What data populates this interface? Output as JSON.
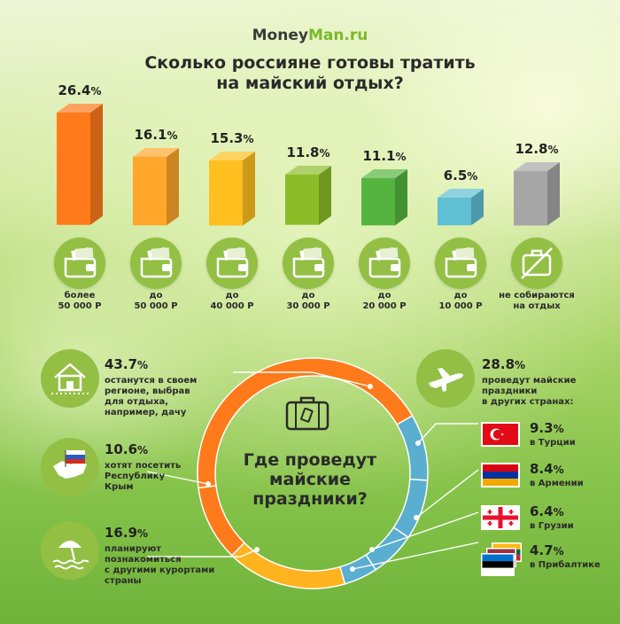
{
  "brand": {
    "logo_part1": "Money",
    "logo_part2": "Man.ru"
  },
  "title_line1": "Сколько россияне готовы тратить",
  "title_line2": "на майский отдых?",
  "colors": {
    "bar": [
      "#ff7a1a",
      "#ffa62b",
      "#ffbf1f",
      "#8cbd28",
      "#55b43f",
      "#5fbfd3",
      "#a6a6a6"
    ],
    "donut_orange": "#ff7a1a",
    "donut_yellow": "#ffb31f",
    "donut_blue": "#5aaed0",
    "icon_circle": "#93bf45"
  },
  "chart_data": [
    {
      "type": "bar",
      "categories": [
        "более 50 000 Р",
        "до 50 000 Р",
        "до 40 000 Р",
        "до 30 000 Р",
        "до 20 000 Р",
        "до 10 000 Р",
        "не собираются на отдых"
      ],
      "category_lines": [
        [
          "более",
          "50 000 Р"
        ],
        [
          "до",
          "50 000 Р"
        ],
        [
          "до",
          "40 000 Р"
        ],
        [
          "до",
          "30 000 Р"
        ],
        [
          "до",
          "20 000 Р"
        ],
        [
          "до",
          "10 000 Р"
        ],
        [
          "не собираются",
          "на отдых"
        ]
      ],
      "values": [
        26.4,
        16.1,
        15.3,
        11.8,
        11.1,
        6.5,
        12.8
      ],
      "value_labels": [
        "26.4",
        "16.1",
        "15.3",
        "11.8",
        "11.1",
        "6.5",
        "12.8"
      ],
      "unit": "%",
      "icons": [
        "wallet-icon",
        "wallet-icon",
        "wallet-icon",
        "wallet-icon",
        "wallet-icon",
        "wallet-icon",
        "no-suitcase-icon"
      ],
      "ylim": [
        0,
        30
      ]
    },
    {
      "type": "pie",
      "title": "Где проведут майские праздники?",
      "title_lines": [
        "Где проведут",
        "майские",
        "праздники?"
      ],
      "slices": [
        {
          "label": "останутся в своем регионе, выбрав для отдыха, например, дачу",
          "value": 43.7,
          "color": "#ff7a1a"
        },
        {
          "label": "хотят посетить Республику Крым",
          "value": 10.6,
          "color": "#ff7a1a"
        },
        {
          "label": "планируют познакомиться с другими курортами страны",
          "value": 16.9,
          "color": "#ffb31f"
        },
        {
          "label": "в Прибалтике",
          "value": 4.7,
          "color": "#5aaed0"
        },
        {
          "label": "в Грузии",
          "value": 6.4,
          "color": "#5aaed0"
        },
        {
          "label": "в Армении",
          "value": 8.4,
          "color": "#5aaed0"
        },
        {
          "label": "в Турции",
          "value": 9.3,
          "color": "#5aaed0"
        }
      ],
      "abroad_total": 28.8
    }
  ],
  "left_stats": [
    {
      "value": "43.7",
      "unit": "%",
      "lines": [
        "останутся в своем",
        "регионе, выбрав",
        "для отдыха,",
        "например, дачу"
      ],
      "icon": "house-icon"
    },
    {
      "value": "10.6",
      "unit": "%",
      "lines": [
        "хотят посетить",
        "Республику",
        "Крым"
      ],
      "icon": "crimea-map-icon"
    },
    {
      "value": "16.9",
      "unit": "%",
      "lines": [
        "планируют",
        "познакомиться",
        "с другими курортами",
        "страны"
      ],
      "icon": "beach-umbrella-icon"
    }
  ],
  "abroad": {
    "value": "28.8",
    "unit": "%",
    "lines": [
      "проведут майские",
      "праздники",
      "в других странах:"
    ],
    "icon": "airplane-icon"
  },
  "countries": [
    {
      "value": "9.3",
      "unit": "%",
      "label": "в Турции",
      "flag": "turkey-flag-icon"
    },
    {
      "value": "8.4",
      "unit": "%",
      "label": "в Армении",
      "flag": "armenia-flag-icon"
    },
    {
      "value": "6.4",
      "unit": "%",
      "label": "в Грузии",
      "flag": "georgia-flag-icon"
    },
    {
      "value": "4.7",
      "unit": "%",
      "label": "в Прибалтике",
      "flag": "baltic-flags-icon"
    }
  ],
  "center_icon": "suitcase-icon"
}
